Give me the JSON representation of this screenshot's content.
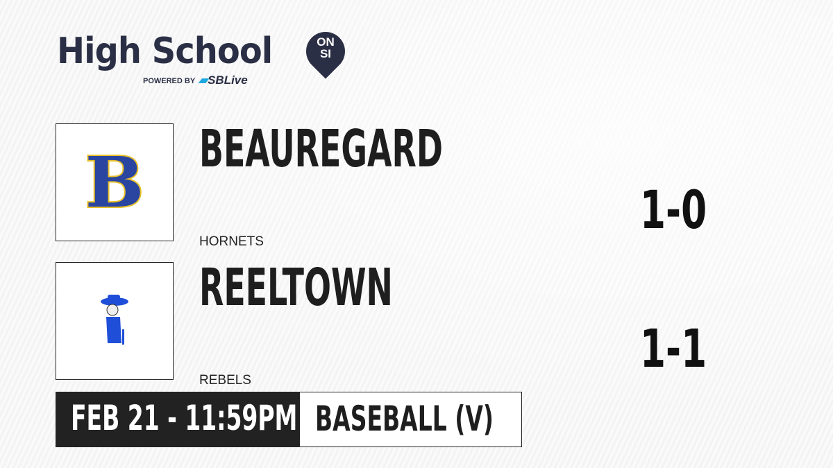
{
  "brand": {
    "title": "High School",
    "badge_top": "ON",
    "badge_bottom": "SI",
    "powered_by": "POWERED BY",
    "partner": "SBLive",
    "partner_prefix": "S"
  },
  "teams": [
    {
      "name": "BEAUREGARD",
      "mascot": "HORNETS",
      "record": "1-0",
      "logo": "letter-b-logo",
      "logo_letter": "B",
      "colors": [
        "#2a45a0",
        "#e8c12a"
      ]
    },
    {
      "name": "REELTOWN",
      "mascot": "REBELS",
      "record": "1-1",
      "logo": "rebel-colonel-logo",
      "colors": [
        "#1f4fd8"
      ]
    }
  ],
  "game": {
    "datetime": "FEB 21 - 11:59PM",
    "sport": "BASEBALL (V)"
  }
}
